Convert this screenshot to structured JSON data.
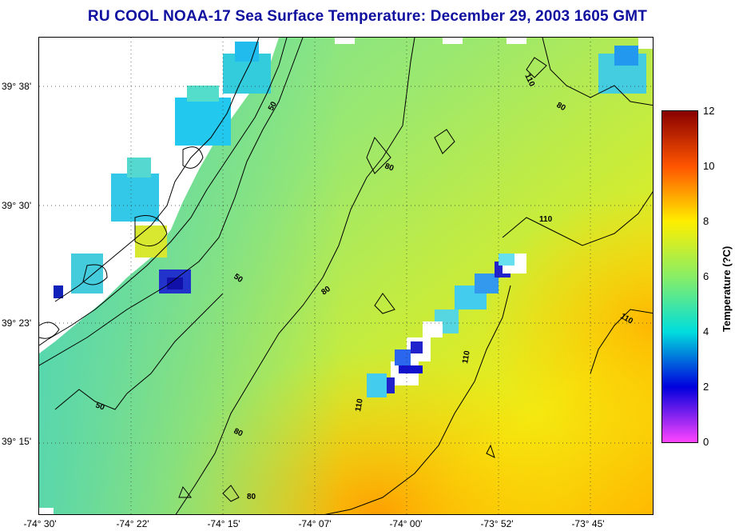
{
  "title": "RU COOL  NOAA-17  Sea Surface Temperature:  December 29, 2003 1605 GMT",
  "latitude_labels": [
    "39° 38'",
    "39° 30'",
    "39° 23'",
    "39° 15'"
  ],
  "longitude_labels": [
    "-74° 30'",
    "-74° 22'",
    "-74° 15'",
    "-74° 07'",
    "-74° 00'",
    "-73° 52'",
    "-73° 45'"
  ],
  "colorbar": {
    "label": "Temperature (?C)",
    "ticks": [
      "0",
      "2",
      "4",
      "6",
      "8",
      "10",
      "12"
    ],
    "colors": [
      "#ff44ff",
      "#0000dd",
      "#00dddd",
      "#88ee66",
      "#ffee00",
      "#ff5500",
      "#880000"
    ]
  },
  "contours": [
    {
      "label": "50"
    },
    {
      "label": "50"
    },
    {
      "label": "50"
    },
    {
      "label": "80"
    },
    {
      "label": "80"
    },
    {
      "label": "80"
    },
    {
      "label": "80"
    },
    {
      "label": "80"
    },
    {
      "label": "110"
    },
    {
      "label": "110"
    },
    {
      "label": "110"
    },
    {
      "label": "110"
    },
    {
      "label": "110"
    }
  ]
}
